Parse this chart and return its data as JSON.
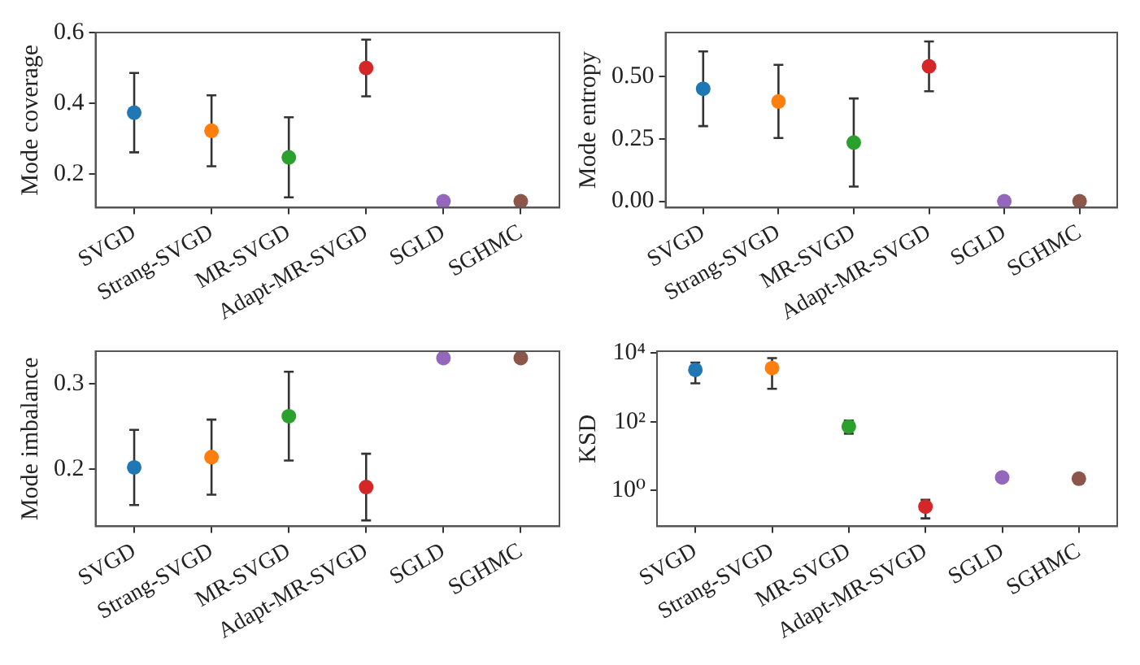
{
  "chart_data": [
    {
      "type": "scatter",
      "ylabel": "Mode coverage",
      "categories": [
        "SVGD",
        "Strang-SVGD",
        "MR-SVGD",
        "Adapt-MR-SVGD",
        "SGLD",
        "SGHMC"
      ],
      "values": [
        0.374,
        0.323,
        0.248,
        0.5,
        0.124,
        0.124
      ],
      "errors": [
        0.112,
        0.1,
        0.113,
        0.08,
        null,
        null
      ],
      "colors": [
        "#1f77b4",
        "#ff7f0e",
        "#2ca02c",
        "#d62728",
        "#9467bd",
        "#8c564b"
      ],
      "ylim": [
        0.106,
        0.6
      ],
      "yticks": [
        {
          "value": 0.2,
          "label": "0.2"
        },
        {
          "value": 0.4,
          "label": "0.4"
        },
        {
          "value": 0.6,
          "label": "0.6"
        }
      ],
      "marker": "circle"
    },
    {
      "type": "scatter",
      "ylabel": "Mode entropy",
      "categories": [
        "SVGD",
        "Strang-SVGD",
        "MR-SVGD",
        "Adapt-MR-SVGD",
        "SGLD",
        "SGHMC"
      ],
      "values": [
        0.452,
        0.401,
        0.236,
        0.542,
        0,
        0
      ],
      "errors": [
        0.15,
        0.147,
        0.177,
        0.1,
        null,
        null
      ],
      "colors": [
        "#1f77b4",
        "#ff7f0e",
        "#2ca02c",
        "#d62728",
        "#9467bd",
        "#8c564b"
      ],
      "ylim": [
        -0.026,
        0.678
      ],
      "yticks": [
        {
          "value": 0,
          "label": "0.00"
        },
        {
          "value": 0.25,
          "label": "0.25"
        },
        {
          "value": 0.5,
          "label": "0.50"
        }
      ],
      "marker": "circle"
    },
    {
      "type": "scatter",
      "ylabel": "Mode imbalance",
      "categories": [
        "SVGD",
        "Strang-SVGD",
        "MR-SVGD",
        "Adapt-MR-SVGD",
        "SGLD",
        "SGHMC"
      ],
      "values": [
        0.202,
        0.214,
        0.262,
        0.179,
        0.33,
        0.33
      ],
      "errors": [
        0.044,
        0.044,
        0.052,
        0.039,
        null,
        null
      ],
      "colors": [
        "#1f77b4",
        "#ff7f0e",
        "#2ca02c",
        "#d62728",
        "#9467bd",
        "#8c564b"
      ],
      "ylim": [
        0.133,
        0.338
      ],
      "yticks": [
        {
          "value": 0.2,
          "label": "0.2"
        },
        {
          "value": 0.3,
          "label": "0.3"
        }
      ],
      "marker": "circle"
    },
    {
      "type": "scatter",
      "ylabel": "KSD",
      "log": "y",
      "categories": [
        "SVGD",
        "Strang-SVGD",
        "MR-SVGD",
        "Adapt-MR-SVGD",
        "SGLD",
        "SGHMC"
      ],
      "values": [
        3200,
        3600,
        72,
        0.34,
        2.4,
        2.2
      ],
      "errors": [
        [
          1300,
          5200
        ],
        [
          900,
          7000
        ],
        [
          45,
          108
        ],
        [
          0.155,
          0.54
        ],
        null,
        null
      ],
      "colors": [
        "#1f77b4",
        "#ff7f0e",
        "#2ca02c",
        "#d62728",
        "#9467bd",
        "#8c564b"
      ],
      "ylim": [
        0.091,
        11100
      ],
      "yticks": [
        {
          "value": 1,
          "label": "10⁰"
        },
        {
          "value": 100,
          "label": "10²"
        },
        {
          "value": 10000,
          "label": "10⁴"
        }
      ],
      "marker": "circle"
    }
  ]
}
